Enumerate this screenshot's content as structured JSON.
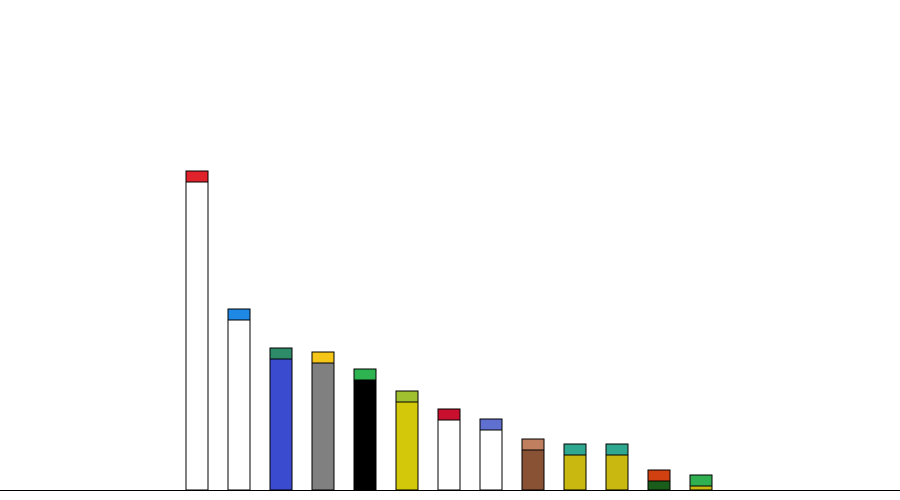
{
  "chart_data": {
    "type": "bar",
    "stacked": true,
    "categories": [
      null,
      null,
      null,
      null,
      null,
      null,
      null,
      null,
      null,
      null,
      null,
      null,
      null
    ],
    "series": [
      {
        "colors": [
          "#ffffff",
          "#ffffff",
          "#3b4bd0",
          "#808080",
          "#000000",
          "#d4c80a",
          "#ffffff",
          "#ffffff",
          "#8a5234",
          "#c8b810",
          "#c8b810",
          "#1a5c1a",
          "#c8b810"
        ],
        "values": [
          308,
          170,
          131,
          127,
          110,
          88,
          70,
          60,
          40,
          35,
          35,
          9,
          4
        ]
      },
      {
        "colors": [
          "#e0222a",
          "#1e88e5",
          "#2e8b6a",
          "#f5c518",
          "#2db350",
          "#a0c030",
          "#c8102e",
          "#6070d0",
          "#c08060",
          "#30a890",
          "#30a890",
          "#d04010",
          "#30b050"
        ],
        "values": [
          11,
          11,
          11,
          11,
          11,
          11,
          11,
          11,
          11,
          11,
          11,
          11,
          11
        ]
      }
    ],
    "ylim": [
      0,
      490
    ]
  }
}
